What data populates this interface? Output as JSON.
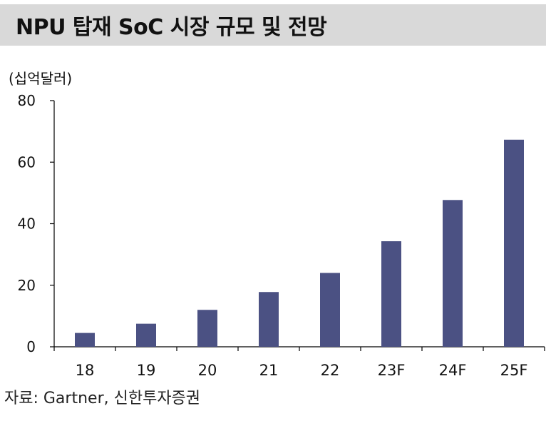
{
  "title": "NPU 탑재 SoC 시장 규모 및 전망",
  "source": "자료: Gartner, 신한투자증권",
  "chart_data": {
    "type": "bar",
    "title": "NPU 탑재 SoC 시장 규모 및 전망",
    "ylabel": "(십억달러)",
    "xlabel": "",
    "categories": [
      "18",
      "19",
      "20",
      "21",
      "22",
      "23F",
      "24F",
      "25F"
    ],
    "values": [
      4.5,
      7.5,
      12,
      17.8,
      24,
      34.3,
      47.7,
      67.3
    ],
    "ylim": [
      0,
      80
    ],
    "yticks": [
      0,
      20,
      40,
      60,
      80
    ],
    "grid": false,
    "bar_color": "#4b5183"
  }
}
